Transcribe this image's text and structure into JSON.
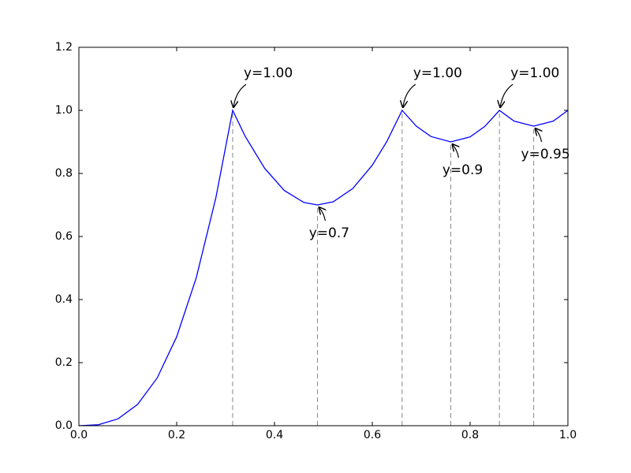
{
  "chart_data": {
    "type": "line",
    "color": "#0000ff",
    "x": [
      0,
      0.04,
      0.08,
      0.12,
      0.16,
      0.2,
      0.24,
      0.28,
      0.3145,
      0.34,
      0.38,
      0.42,
      0.46,
      0.4878,
      0.52,
      0.56,
      0.6,
      0.63,
      0.661,
      0.69,
      0.72,
      0.7605,
      0.8,
      0.83,
      0.86,
      0.89,
      0.93,
      0.97,
      1.0
    ],
    "values": [
      0,
      0.0031,
      0.0217,
      0.0674,
      0.151,
      0.282,
      0.469,
      0.722,
      1.0,
      0.918,
      0.816,
      0.746,
      0.708,
      0.7,
      0.71,
      0.752,
      0.826,
      0.902,
      1.0,
      0.95,
      0.917,
      0.9,
      0.916,
      0.949,
      1.0,
      0.966,
      0.95,
      0.966,
      1.0
    ],
    "annotations": [
      {
        "text": "y=1.00",
        "x": 0.3145,
        "y": 1.0
      },
      {
        "text": "y=0.7",
        "x": 0.4878,
        "y": 0.7
      },
      {
        "text": "y=1.00",
        "x": 0.661,
        "y": 1.0
      },
      {
        "text": "y=0.9",
        "x": 0.7605,
        "y": 0.9
      },
      {
        "text": "y=1.00",
        "x": 0.86,
        "y": 1.0
      },
      {
        "text": "y=0.95",
        "x": 0.93,
        "y": 0.95
      }
    ],
    "xlim": [
      0,
      1.0
    ],
    "xticks": [
      {
        "value": 0,
        "label": "0.0"
      },
      0.2,
      0.4,
      0.6,
      0.8,
      {
        "value": 1.0,
        "label": "1.0"
      }
    ],
    "ylim": [
      0,
      1.2
    ],
    "yticks": [
      {
        "value": 0,
        "label": "0.0"
      },
      0.2,
      0.4,
      0.6,
      0.8,
      {
        "value": 1.0,
        "label": "1.0"
      },
      1.2
    ],
    "grid": false
  }
}
